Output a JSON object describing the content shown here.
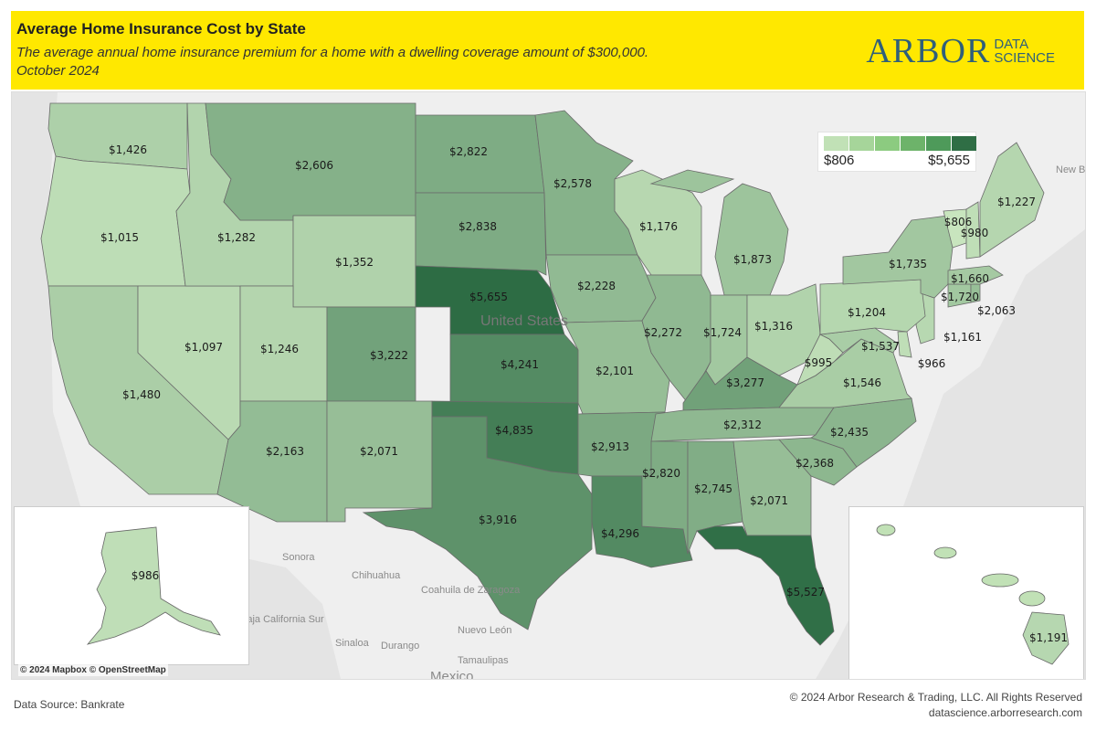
{
  "header": {
    "title": "Average Home Insurance Cost by State",
    "subtitle": "The average annual home insurance premium for a home with a dwelling coverage amount of $300,000.",
    "date": "October 2024",
    "logo_main": "ARBOR",
    "logo_sub_1": "DATA",
    "logo_sub_2": "SCIENCE",
    "background": "#ffe800"
  },
  "legend": {
    "min_label": "$806",
    "max_label": "$5,655",
    "colors": [
      "#c1e1b6",
      "#a6d59a",
      "#8ccb80",
      "#6db36a",
      "#4e9a5a",
      "#2f6e45"
    ]
  },
  "basemap": {
    "attribution": "© 2024 Mapbox © OpenStreetMap",
    "place_labels": [
      "United States",
      "Sonora",
      "Chihuahua",
      "Coahuila de Zaragoza",
      "Baja California Sur",
      "Sinaloa",
      "Durango",
      "Nuevo León",
      "Tamaulipas",
      "Mexico",
      "New Brunswick"
    ]
  },
  "chart_data": {
    "type": "choropleth",
    "value_range": [
      806,
      5655
    ],
    "states": [
      {
        "state": "WA",
        "value": 1426,
        "label": "$1,426"
      },
      {
        "state": "OR",
        "value": 1015,
        "label": "$1,015"
      },
      {
        "state": "CA",
        "value": 1480,
        "label": "$1,480"
      },
      {
        "state": "NV",
        "value": 1097,
        "label": "$1,097"
      },
      {
        "state": "ID",
        "value": 1282,
        "label": "$1,282"
      },
      {
        "state": "MT",
        "value": 2606,
        "label": "$2,606"
      },
      {
        "state": "WY",
        "value": 1352,
        "label": "$1,352"
      },
      {
        "state": "UT",
        "value": 1246,
        "label": "$1,246"
      },
      {
        "state": "AZ",
        "value": 2163,
        "label": "$2,163"
      },
      {
        "state": "CO",
        "value": 3222,
        "label": "$3,222"
      },
      {
        "state": "NM",
        "value": 2071,
        "label": "$2,071"
      },
      {
        "state": "ND",
        "value": 2822,
        "label": "$2,822"
      },
      {
        "state": "SD",
        "value": 2838,
        "label": "$2,838"
      },
      {
        "state": "NE",
        "value": 5655,
        "label": "$5,655"
      },
      {
        "state": "KS",
        "value": 4241,
        "label": "$4,241"
      },
      {
        "state": "OK",
        "value": 4835,
        "label": "$4,835"
      },
      {
        "state": "TX",
        "value": 3916,
        "label": "$3,916"
      },
      {
        "state": "MN",
        "value": 2578,
        "label": "$2,578"
      },
      {
        "state": "IA",
        "value": 2228,
        "label": "$2,228"
      },
      {
        "state": "MO",
        "value": 2101,
        "label": "$2,101"
      },
      {
        "state": "AR",
        "value": 2913,
        "label": "$2,913"
      },
      {
        "state": "LA",
        "value": 4296,
        "label": "$4,296"
      },
      {
        "state": "WI",
        "value": 1176,
        "label": "$1,176"
      },
      {
        "state": "IL",
        "value": 2272,
        "label": "$2,272"
      },
      {
        "state": "MI",
        "value": 1873,
        "label": "$1,873"
      },
      {
        "state": "IN",
        "value": 1724,
        "label": "$1,724"
      },
      {
        "state": "OH",
        "value": 1316,
        "label": "$1,316"
      },
      {
        "state": "KY",
        "value": 3277,
        "label": "$3,277"
      },
      {
        "state": "TN",
        "value": 2312,
        "label": "$2,312"
      },
      {
        "state": "MS",
        "value": 2820,
        "label": "$2,820"
      },
      {
        "state": "AL",
        "value": 2745,
        "label": "$2,745"
      },
      {
        "state": "GA",
        "value": 2071,
        "label": "$2,071"
      },
      {
        "state": "FL",
        "value": 5527,
        "label": "$5,527"
      },
      {
        "state": "SC",
        "value": 2368,
        "label": "$2,368"
      },
      {
        "state": "NC",
        "value": 2435,
        "label": "$2,435"
      },
      {
        "state": "VA",
        "value": 1546,
        "label": "$1,546"
      },
      {
        "state": "WV",
        "value": 995,
        "label": "$995"
      },
      {
        "state": "MD",
        "value": 1537,
        "label": "$1,537"
      },
      {
        "state": "DE",
        "value": 966,
        "label": "$966"
      },
      {
        "state": "NJ",
        "value": 1161,
        "label": "$1,161"
      },
      {
        "state": "PA",
        "value": 1204,
        "label": "$1,204"
      },
      {
        "state": "NY",
        "value": 1735,
        "label": "$1,735"
      },
      {
        "state": "CT",
        "value": 1720,
        "label": "$1,720"
      },
      {
        "state": "RI",
        "value": 2063,
        "label": "$2,063"
      },
      {
        "state": "MA",
        "value": 1660,
        "label": "$1,660"
      },
      {
        "state": "VT",
        "value": 806,
        "label": "$806"
      },
      {
        "state": "NH",
        "value": 980,
        "label": "$980"
      },
      {
        "state": "ME",
        "value": 1227,
        "label": "$1,227"
      },
      {
        "state": "AK",
        "value": 986,
        "label": "$986"
      },
      {
        "state": "HI",
        "value": 1191,
        "label": "$1,191"
      }
    ]
  },
  "footer": {
    "source": "Data Source: Bankrate",
    "copyright": "© 2024 Arbor Research & Trading, LLC. All Rights Reserved",
    "website": "datascience.arborresearch.com"
  }
}
